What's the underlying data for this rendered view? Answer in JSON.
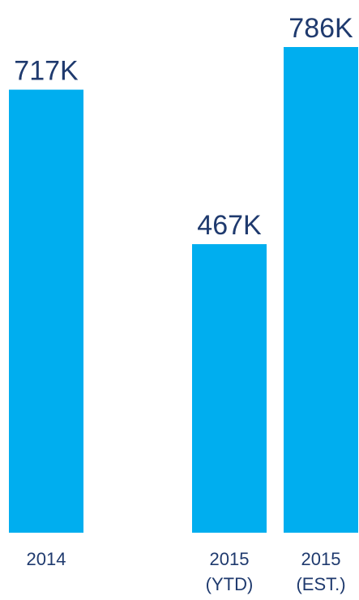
{
  "chart_data": {
    "type": "bar",
    "categories": [
      [
        "2014"
      ],
      [
        "2015",
        "(YTD)"
      ],
      [
        "2015",
        "(EST.)"
      ]
    ],
    "values": [
      717000,
      467000,
      786000
    ],
    "data_labels": [
      "717K",
      "467K",
      "786K"
    ],
    "ylim": [
      0,
      786000
    ],
    "grid": false,
    "colors": {
      "bar": "#00aeef",
      "value_label": "#1f3a6e",
      "category_label": "#1f3a6e"
    }
  }
}
